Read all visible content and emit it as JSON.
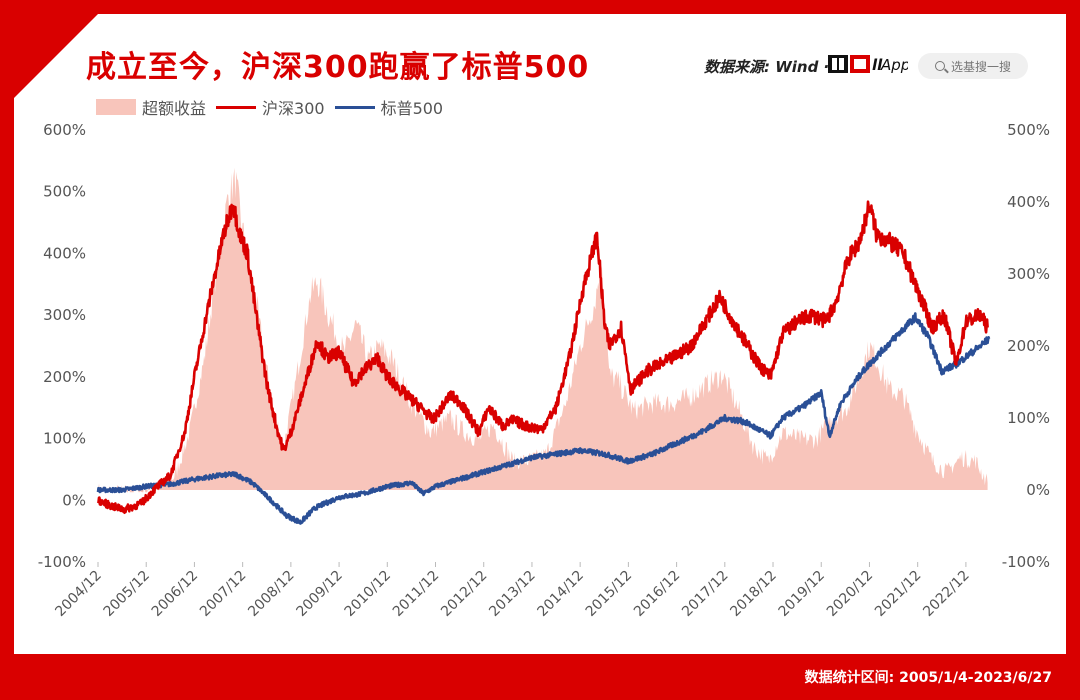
{
  "title": "成立至今，沪深300跑赢了标普500",
  "source": "数据来源: Wind · ",
  "brand": "非圈儿App",
  "search_label": "选基搜一搜",
  "footer": "数据统计区间:  2005/1/4-2023/6/27",
  "watermark": "非圈儿",
  "colors": {
    "frame": "#d90000",
    "csi300": "#d90000",
    "sp500": "#2a4f96",
    "excess": "#f8c5bb"
  },
  "chart_data": {
    "type": "line",
    "title": "成立至今，沪深300跑赢了标普500",
    "legend": {
      "placement": "top-left",
      "entries": [
        "超额收益",
        "沪深300",
        "标普500"
      ]
    },
    "x_tick_labels": [
      "2004/12",
      "2005/12",
      "2006/12",
      "2007/12",
      "2008/12",
      "2009/12",
      "2010/12",
      "2011/12",
      "2012/12",
      "2013/12",
      "2014/12",
      "2015/12",
      "2016/12",
      "2017/12",
      "2018/12",
      "2019/12",
      "2020/12",
      "2021/12",
      "2022/12"
    ],
    "x_range": [
      2005.0,
      2023.5
    ],
    "left_axis": {
      "ticks": [
        "600%",
        "500%",
        "400%",
        "300%",
        "200%",
        "100%",
        "0%",
        "-100%"
      ],
      "range": [
        -100,
        600
      ]
    },
    "right_axis": {
      "ticks": [
        "500%",
        "400%",
        "300%",
        "200%",
        "100%",
        "0%",
        "-100%"
      ],
      "range": [
        -100,
        500
      ]
    },
    "series": [
      {
        "name": "超额收益",
        "type": "area",
        "axis": "right",
        "points": [
          [
            2005.0,
            0
          ],
          [
            2005.5,
            -3
          ],
          [
            2006.0,
            -3
          ],
          [
            2006.3,
            5
          ],
          [
            2006.6,
            20
          ],
          [
            2006.9,
            80
          ],
          [
            2007.2,
            180
          ],
          [
            2007.45,
            300
          ],
          [
            2007.7,
            410
          ],
          [
            2007.85,
            430
          ],
          [
            2008.0,
            360
          ],
          [
            2008.3,
            250
          ],
          [
            2008.6,
            120
          ],
          [
            2008.85,
            60
          ],
          [
            2009.1,
            150
          ],
          [
            2009.4,
            270
          ],
          [
            2009.55,
            290
          ],
          [
            2009.8,
            240
          ],
          [
            2010.1,
            190
          ],
          [
            2010.35,
            230
          ],
          [
            2010.6,
            180
          ],
          [
            2010.85,
            200
          ],
          [
            2011.1,
            180
          ],
          [
            2011.5,
            120
          ],
          [
            2011.9,
            80
          ],
          [
            2012.3,
            100
          ],
          [
            2012.6,
            80
          ],
          [
            2012.9,
            70
          ],
          [
            2013.2,
            90
          ],
          [
            2013.6,
            40
          ],
          [
            2013.9,
            40
          ],
          [
            2014.3,
            50
          ],
          [
            2014.7,
            120
          ],
          [
            2015.0,
            200
          ],
          [
            2015.3,
            260
          ],
          [
            2015.45,
            320
          ],
          [
            2015.6,
            160
          ],
          [
            2015.8,
            150
          ],
          [
            2016.1,
            110
          ],
          [
            2016.5,
            120
          ],
          [
            2016.9,
            120
          ],
          [
            2017.3,
            130
          ],
          [
            2017.7,
            150
          ],
          [
            2017.95,
            160
          ],
          [
            2018.3,
            110
          ],
          [
            2018.6,
            60
          ],
          [
            2018.9,
            40
          ],
          [
            2019.2,
            80
          ],
          [
            2019.6,
            70
          ],
          [
            2019.9,
            70
          ],
          [
            2020.2,
            100
          ],
          [
            2020.5,
            110
          ],
          [
            2020.75,
            150
          ],
          [
            2021.0,
            200
          ],
          [
            2021.15,
            180
          ],
          [
            2021.4,
            140
          ],
          [
            2021.7,
            130
          ],
          [
            2022.0,
            80
          ],
          [
            2022.3,
            40
          ],
          [
            2022.6,
            25
          ],
          [
            2022.9,
            45
          ],
          [
            2023.2,
            40
          ],
          [
            2023.45,
            10
          ]
        ]
      },
      {
        "name": "沪深300",
        "type": "line",
        "axis": "left",
        "points": [
          [
            2005.0,
            0
          ],
          [
            2005.3,
            -10
          ],
          [
            2005.55,
            -15
          ],
          [
            2005.9,
            -5
          ],
          [
            2006.2,
            20
          ],
          [
            2006.5,
            40
          ],
          [
            2006.8,
            110
          ],
          [
            2007.0,
            200
          ],
          [
            2007.3,
            320
          ],
          [
            2007.6,
            430
          ],
          [
            2007.8,
            480
          ],
          [
            2007.95,
            430
          ],
          [
            2008.1,
            400
          ],
          [
            2008.3,
            290
          ],
          [
            2008.5,
            190
          ],
          [
            2008.7,
            120
          ],
          [
            2008.85,
            80
          ],
          [
            2009.0,
            110
          ],
          [
            2009.3,
            190
          ],
          [
            2009.55,
            260
          ],
          [
            2009.75,
            230
          ],
          [
            2010.0,
            240
          ],
          [
            2010.3,
            190
          ],
          [
            2010.5,
            210
          ],
          [
            2010.8,
            230
          ],
          [
            2011.0,
            200
          ],
          [
            2011.4,
            170
          ],
          [
            2011.7,
            150
          ],
          [
            2011.95,
            130
          ],
          [
            2012.3,
            170
          ],
          [
            2012.5,
            160
          ],
          [
            2012.9,
            110
          ],
          [
            2013.1,
            150
          ],
          [
            2013.4,
            120
          ],
          [
            2013.6,
            130
          ],
          [
            2013.9,
            120
          ],
          [
            2014.2,
            115
          ],
          [
            2014.5,
            150
          ],
          [
            2014.8,
            240
          ],
          [
            2015.05,
            340
          ],
          [
            2015.35,
            430
          ],
          [
            2015.5,
            290
          ],
          [
            2015.6,
            250
          ],
          [
            2015.85,
            280
          ],
          [
            2016.05,
            180
          ],
          [
            2016.4,
            210
          ],
          [
            2016.9,
            230
          ],
          [
            2017.3,
            250
          ],
          [
            2017.6,
            290
          ],
          [
            2017.9,
            330
          ],
          [
            2018.1,
            300
          ],
          [
            2018.4,
            260
          ],
          [
            2018.7,
            220
          ],
          [
            2018.95,
            200
          ],
          [
            2019.2,
            270
          ],
          [
            2019.5,
            290
          ],
          [
            2019.8,
            300
          ],
          [
            2020.1,
            290
          ],
          [
            2020.3,
            320
          ],
          [
            2020.55,
            390
          ],
          [
            2020.8,
            420
          ],
          [
            2021.0,
            480
          ],
          [
            2021.15,
            430
          ],
          [
            2021.4,
            420
          ],
          [
            2021.7,
            400
          ],
          [
            2021.95,
            350
          ],
          [
            2022.3,
            280
          ],
          [
            2022.55,
            300
          ],
          [
            2022.8,
            220
          ],
          [
            2023.0,
            290
          ],
          [
            2023.3,
            300
          ],
          [
            2023.45,
            280
          ]
        ]
      },
      {
        "name": "标普500",
        "type": "line",
        "axis": "right",
        "points": [
          [
            2005.0,
            0
          ],
          [
            2005.5,
            0
          ],
          [
            2006.0,
            5
          ],
          [
            2006.5,
            8
          ],
          [
            2007.0,
            15
          ],
          [
            2007.5,
            20
          ],
          [
            2007.85,
            22
          ],
          [
            2008.2,
            10
          ],
          [
            2008.6,
            -15
          ],
          [
            2008.9,
            -35
          ],
          [
            2009.2,
            -45
          ],
          [
            2009.5,
            -25
          ],
          [
            2010.0,
            -10
          ],
          [
            2010.5,
            -5
          ],
          [
            2011.0,
            5
          ],
          [
            2011.5,
            10
          ],
          [
            2011.75,
            -5
          ],
          [
            2012.0,
            5
          ],
          [
            2012.5,
            15
          ],
          [
            2013.0,
            25
          ],
          [
            2013.5,
            35
          ],
          [
            2014.0,
            45
          ],
          [
            2014.5,
            50
          ],
          [
            2015.0,
            55
          ],
          [
            2015.5,
            50
          ],
          [
            2016.0,
            40
          ],
          [
            2016.5,
            50
          ],
          [
            2017.0,
            65
          ],
          [
            2017.5,
            80
          ],
          [
            2018.0,
            100
          ],
          [
            2018.4,
            95
          ],
          [
            2018.95,
            75
          ],
          [
            2019.2,
            100
          ],
          [
            2019.6,
            115
          ],
          [
            2020.0,
            135
          ],
          [
            2020.17,
            75
          ],
          [
            2020.4,
            120
          ],
          [
            2020.8,
            160
          ],
          [
            2021.0,
            175
          ],
          [
            2021.5,
            210
          ],
          [
            2021.95,
            240
          ],
          [
            2022.2,
            215
          ],
          [
            2022.5,
            165
          ],
          [
            2022.8,
            175
          ],
          [
            2023.0,
            185
          ],
          [
            2023.3,
            200
          ],
          [
            2023.48,
            210
          ]
        ]
      }
    ]
  }
}
